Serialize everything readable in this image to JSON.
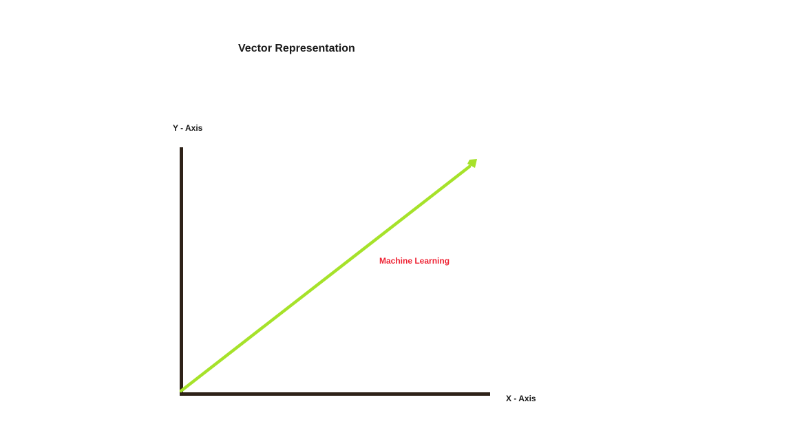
{
  "diagram": {
    "title": "Vector Representation",
    "y_axis_label": "Y - Axis",
    "x_axis_label": "X - Axis",
    "vector_label": "Machine Learning"
  },
  "colors": {
    "axis": "#2e2218",
    "vector": "#a6e22a",
    "vector_label": "#ee2233",
    "text": "#1a1a1a"
  }
}
